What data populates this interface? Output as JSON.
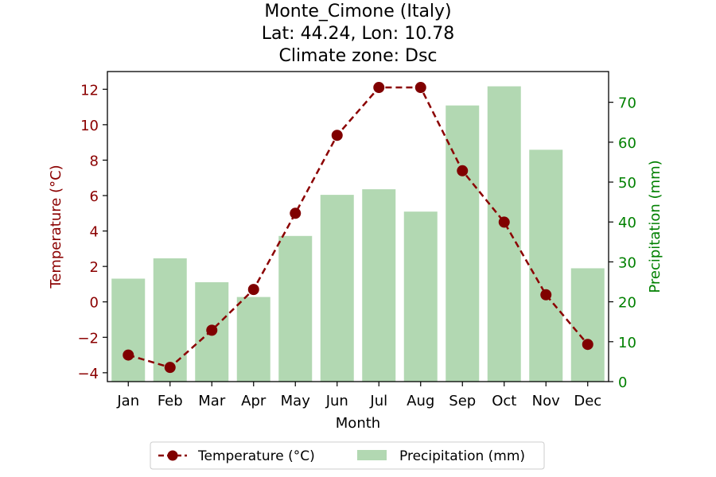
{
  "title_lines": [
    "Monte_Cimone (Italy)",
    "Lat: 44.24, Lon: 10.78",
    "Climate zone: Dsc"
  ],
  "colors": {
    "temperature": "#8b0000",
    "precipitation": "#008000",
    "bar_fill": "#b2d8b2",
    "axis": "#000000"
  },
  "chart_data": {
    "type": "bar",
    "categories": [
      "Jan",
      "Feb",
      "Mar",
      "Apr",
      "May",
      "Jun",
      "Jul",
      "Aug",
      "Sep",
      "Oct",
      "Nov",
      "Dec"
    ],
    "xlabel": "Month",
    "grid": false,
    "legend_position": "bottom-center",
    "series": [
      {
        "name": "Temperature (°C)",
        "kind": "line",
        "axis": "left",
        "style": "dashed-with-circle-markers",
        "values": [
          -3.0,
          -3.7,
          -1.6,
          0.7,
          5.0,
          9.4,
          12.1,
          12.1,
          7.4,
          4.5,
          0.4,
          -2.4
        ]
      },
      {
        "name": "Precipitation (mm)",
        "kind": "bar",
        "axis": "right",
        "values": [
          25.8,
          30.9,
          24.9,
          21.2,
          36.5,
          46.8,
          48.2,
          42.6,
          69.2,
          74.0,
          58.1,
          28.4
        ]
      }
    ],
    "y_left": {
      "label": "Temperature (°C)",
      "ylim": [
        -4.5,
        13.0
      ],
      "ticks": [
        -4,
        -2,
        0,
        2,
        4,
        6,
        8,
        10,
        12
      ],
      "tick_labels": [
        "−4",
        "−2",
        "0",
        "2",
        "4",
        "6",
        "8",
        "10",
        "12"
      ]
    },
    "y_right": {
      "label": "Precipitation (mm)",
      "ylim": [
        0,
        77.7
      ],
      "ticks": [
        0,
        10,
        20,
        30,
        40,
        50,
        60,
        70
      ],
      "tick_labels": [
        "0",
        "10",
        "20",
        "30",
        "40",
        "50",
        "60",
        "70"
      ]
    }
  }
}
